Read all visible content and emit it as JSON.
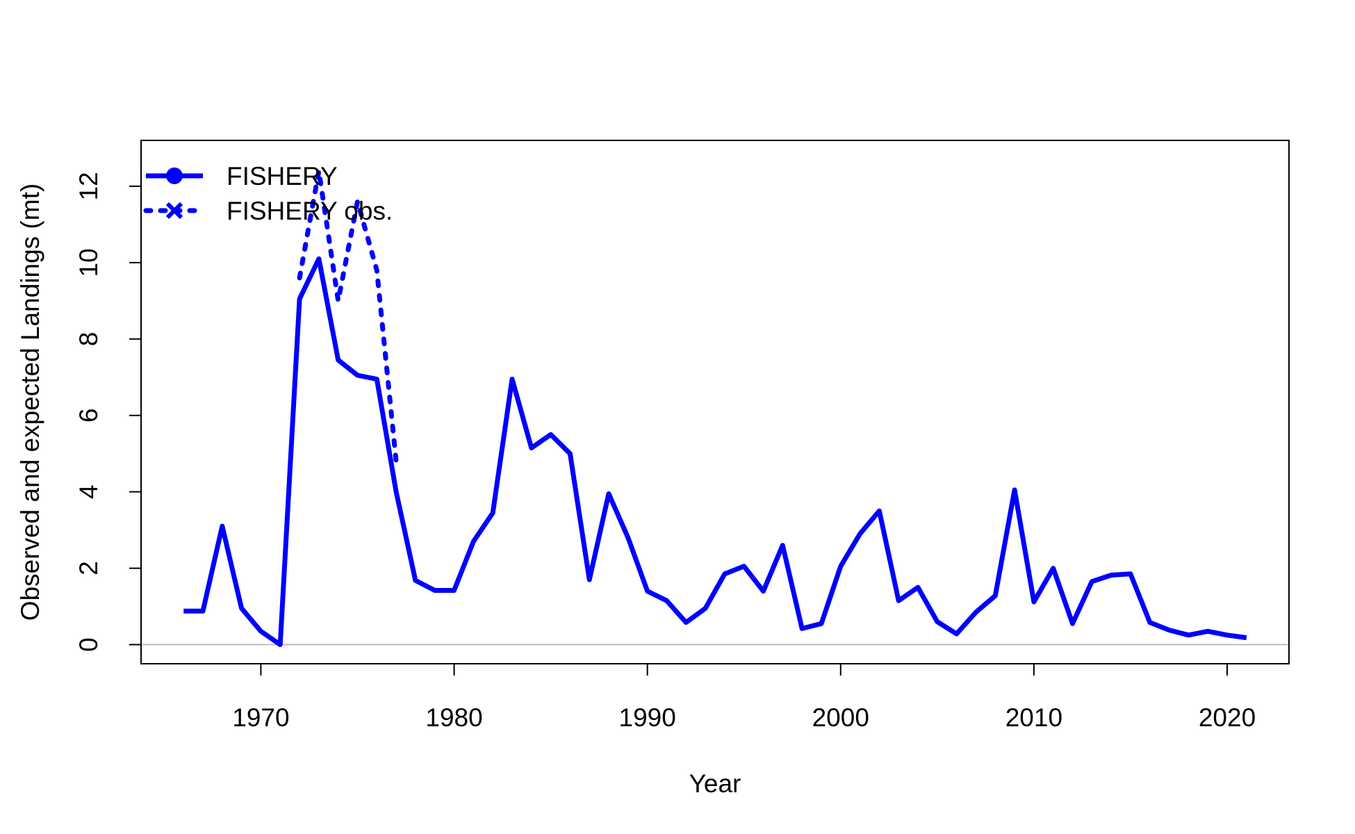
{
  "chart_data": {
    "type": "line",
    "title": "",
    "xlabel": "Year",
    "ylabel": "Observed and expected Landings (mt)",
    "xlim": [
      1963.8,
      2023.2
    ],
    "ylim": [
      -0.5,
      13.2
    ],
    "xticks": [
      1970,
      1980,
      1990,
      2000,
      2010,
      2020
    ],
    "yticks": [
      0,
      2,
      4,
      6,
      8,
      10,
      12
    ],
    "reference_line_y": 0,
    "reference_line_color": "#bebebe",
    "legend_position": "top-left",
    "series": [
      {
        "name": "FISHERY",
        "color": "#0000ff",
        "style": "solid",
        "marker": "circle",
        "x": [
          1966,
          1967,
          1968,
          1969,
          1970,
          1971,
          1972,
          1973,
          1974,
          1975,
          1976,
          1977,
          1978,
          1979,
          1980,
          1981,
          1982,
          1983,
          1984,
          1985,
          1986,
          1987,
          1988,
          1989,
          1990,
          1991,
          1992,
          1993,
          1994,
          1995,
          1996,
          1997,
          1998,
          1999,
          2000,
          2001,
          2002,
          2003,
          2004,
          2005,
          2006,
          2007,
          2008,
          2009,
          2010,
          2011,
          2012,
          2013,
          2014,
          2015,
          2016,
          2017,
          2018,
          2019,
          2020,
          2021
        ],
        "y": [
          0.88,
          0.88,
          3.1,
          0.95,
          0.35,
          0.0,
          9.05,
          10.1,
          7.45,
          7.05,
          6.95,
          4.0,
          1.68,
          1.42,
          1.42,
          2.7,
          3.45,
          6.95,
          5.15,
          5.5,
          5.0,
          1.7,
          3.95,
          2.8,
          1.4,
          1.15,
          0.58,
          0.95,
          1.85,
          2.05,
          1.4,
          2.6,
          0.42,
          0.55,
          2.05,
          2.9,
          3.5,
          1.15,
          1.5,
          0.6,
          0.28,
          0.85,
          1.28,
          4.05,
          1.12,
          2.0,
          0.55,
          1.65,
          1.82,
          1.85,
          0.58,
          0.38,
          0.25,
          0.35,
          0.25,
          0.18
        ]
      },
      {
        "name": "FISHERY obs.",
        "color": "#0000ff",
        "style": "dotted",
        "marker": "x",
        "x": [
          1972,
          1973,
          1974,
          1975,
          1976,
          1977
        ],
        "y": [
          9.6,
          12.4,
          9.0,
          11.6,
          9.8,
          4.8
        ]
      }
    ]
  }
}
